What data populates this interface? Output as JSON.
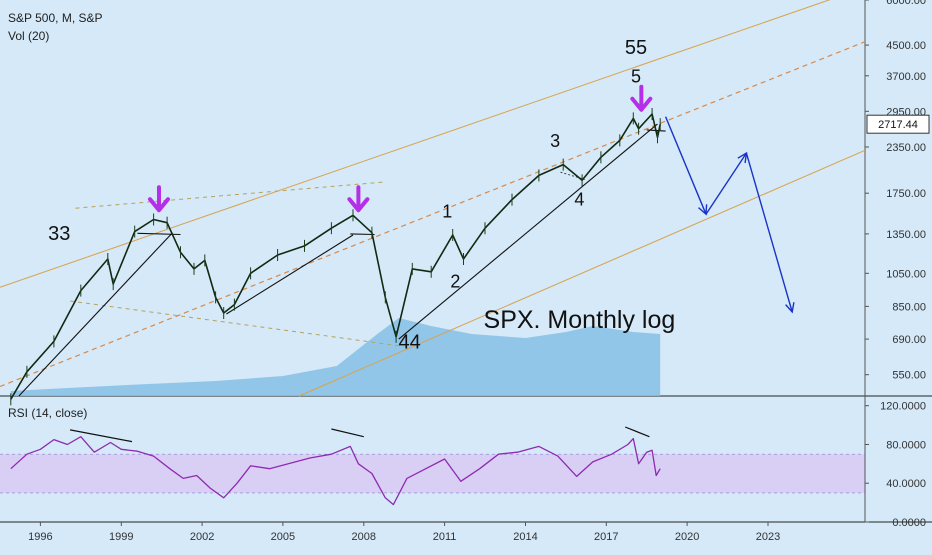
{
  "header": {
    "symbol_line": "S&P 500, M, S&P",
    "volume_label": "Vol (20)",
    "rsi_label": "RSI (14, close)"
  },
  "price_badge": "2717.44",
  "chart_data": [
    {
      "type": "line",
      "title": "SPX. Monthly log",
      "scale": "log",
      "ylim": [
        480,
        6000
      ],
      "xlim": [
        1994.5,
        2026.6
      ],
      "y_ticks": [
        "6000.00",
        "4500.00",
        "3700.00",
        "2950.00",
        "2350.00",
        "1750.00",
        "1350.00",
        "1050.00",
        "850.00",
        "690.00",
        "550.00"
      ],
      "y_tick_values": [
        6000,
        4500,
        3700,
        2950,
        2350,
        1750,
        1350,
        1050,
        850,
        690,
        550
      ],
      "x_ticks": [
        "1996",
        "1999",
        "2002",
        "2005",
        "2008",
        "2011",
        "2014",
        "2017",
        "2020",
        "2023"
      ],
      "x_tick_values": [
        1996,
        1999,
        2002,
        2005,
        2008,
        2011,
        2014,
        2017,
        2020,
        2023
      ],
      "series": [
        {
          "values": [
            [
              1994.9,
              470
            ],
            [
              1995.5,
              560
            ],
            [
              1996.5,
              680
            ],
            [
              1997.5,
              940
            ],
            [
              1998.5,
              1150
            ],
            [
              1998.7,
              980
            ],
            [
              1999.5,
              1370
            ],
            [
              2000.2,
              1480
            ],
            [
              2000.7,
              1450
            ],
            [
              2001.2,
              1200
            ],
            [
              2001.7,
              1080
            ],
            [
              2002.1,
              1140
            ],
            [
              2002.5,
              900
            ],
            [
              2002.8,
              815
            ],
            [
              2003.2,
              860
            ],
            [
              2003.8,
              1050
            ],
            [
              2004.8,
              1180
            ],
            [
              2005.8,
              1250
            ],
            [
              2006.8,
              1400
            ],
            [
              2007.6,
              1520
            ],
            [
              2008.3,
              1360
            ],
            [
              2008.8,
              900
            ],
            [
              2009.2,
              700
            ],
            [
              2009.8,
              1080
            ],
            [
              2010.5,
              1060
            ],
            [
              2011.3,
              1340
            ],
            [
              2011.7,
              1150
            ],
            [
              2012.5,
              1400
            ],
            [
              2013.5,
              1680
            ],
            [
              2014.5,
              1960
            ],
            [
              2015.4,
              2100
            ],
            [
              2016.1,
              1900
            ],
            [
              2016.8,
              2200
            ],
            [
              2017.5,
              2450
            ],
            [
              2018.0,
              2820
            ],
            [
              2018.2,
              2640
            ],
            [
              2018.7,
              2900
            ],
            [
              2018.9,
              2500
            ],
            [
              2019.0,
              2717
            ]
          ]
        }
      ],
      "volume": [
        [
          1994.9,
          0.05
        ],
        [
          1997.0,
          0.08
        ],
        [
          2000.0,
          0.12
        ],
        [
          2002.5,
          0.15
        ],
        [
          2005.0,
          0.2
        ],
        [
          2007.0,
          0.3
        ],
        [
          2008.5,
          0.62
        ],
        [
          2009.3,
          0.78
        ],
        [
          2010.5,
          0.7
        ],
        [
          2012.0,
          0.62
        ],
        [
          2014.0,
          0.58
        ],
        [
          2015.5,
          0.64
        ],
        [
          2016.5,
          0.7
        ],
        [
          2018.0,
          0.64
        ],
        [
          2019.0,
          0.62
        ]
      ],
      "annotations": [
        {
          "text": "33",
          "x": 1996.7,
          "y": 1300
        },
        {
          "text": "1",
          "x": 2011.1,
          "y": 1500
        },
        {
          "text": "2",
          "x": 2011.4,
          "y": 960
        },
        {
          "text": "3",
          "x": 2015.1,
          "y": 2350
        },
        {
          "text": "4",
          "x": 2016.0,
          "y": 1620
        },
        {
          "text": "5",
          "x": 2018.1,
          "y": 3550
        },
        {
          "text": "55",
          "x": 2018.1,
          "y": 4250
        },
        {
          "text": "44",
          "x": 2009.7,
          "y": 650
        }
      ]
    },
    {
      "type": "line",
      "title": "RSI (14, close)",
      "ylim": [
        0,
        130
      ],
      "y_ticks": [
        "120.0000",
        "80.0000",
        "40.0000",
        "0.0000"
      ],
      "y_tick_values": [
        120,
        80,
        40,
        0
      ],
      "band": [
        30,
        70
      ],
      "series": [
        {
          "values": [
            [
              1994.9,
              55
            ],
            [
              1995.5,
              70
            ],
            [
              1996.0,
              75
            ],
            [
              1996.5,
              85
            ],
            [
              1997.0,
              80
            ],
            [
              1997.5,
              88
            ],
            [
              1998.0,
              72
            ],
            [
              1998.6,
              82
            ],
            [
              1999.0,
              75
            ],
            [
              1999.6,
              73
            ],
            [
              2000.2,
              68
            ],
            [
              2000.8,
              55
            ],
            [
              2001.3,
              45
            ],
            [
              2001.8,
              48
            ],
            [
              2002.3,
              35
            ],
            [
              2002.8,
              25
            ],
            [
              2003.3,
              40
            ],
            [
              2003.8,
              58
            ],
            [
              2004.5,
              55
            ],
            [
              2005.2,
              60
            ],
            [
              2006.0,
              66
            ],
            [
              2006.8,
              70
            ],
            [
              2007.5,
              78
            ],
            [
              2007.8,
              60
            ],
            [
              2008.3,
              50
            ],
            [
              2008.8,
              25
            ],
            [
              2009.1,
              18
            ],
            [
              2009.6,
              45
            ],
            [
              2010.3,
              55
            ],
            [
              2011.0,
              65
            ],
            [
              2011.6,
              42
            ],
            [
              2012.3,
              55
            ],
            [
              2013.0,
              70
            ],
            [
              2013.7,
              72
            ],
            [
              2014.5,
              78
            ],
            [
              2015.2,
              68
            ],
            [
              2015.9,
              47
            ],
            [
              2016.5,
              62
            ],
            [
              2017.2,
              70
            ],
            [
              2017.8,
              80
            ],
            [
              2018.0,
              86
            ],
            [
              2018.2,
              60
            ],
            [
              2018.5,
              72
            ],
            [
              2018.7,
              74
            ],
            [
              2018.85,
              48
            ],
            [
              2019.0,
              55
            ]
          ]
        }
      ]
    }
  ]
}
